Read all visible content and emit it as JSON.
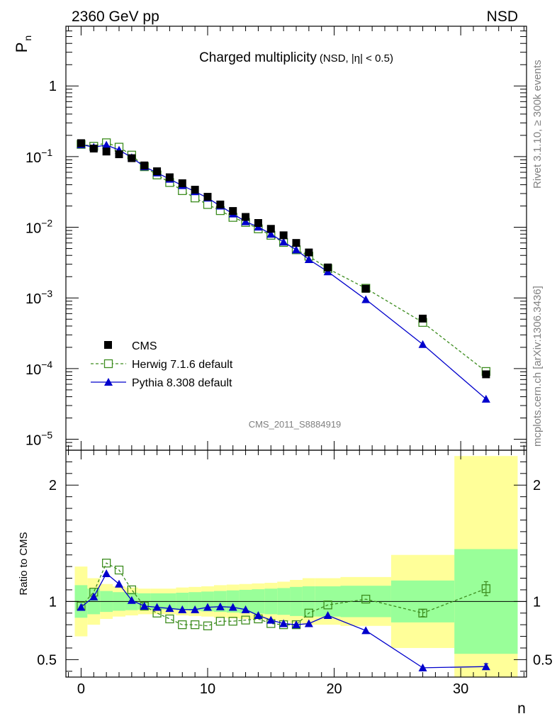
{
  "header": {
    "left": "2360 GeV pp",
    "right": "NSD"
  },
  "title": {
    "main": "Charged multiplicity",
    "sub": "(NSD, |η| < 0.5)"
  },
  "ylabel_top": {
    "base": "P",
    "sub": "n"
  },
  "ylabel_bottom": "Ratio to CMS",
  "xlabel": "n",
  "side_text_top": "Rivet 3.1.10, ≥ 300k events",
  "side_text_bottom": "mcplots.cern.ch [arXiv:1306.3436]",
  "watermark": "CMS_2011_S8884919",
  "colors": {
    "data": "#000000",
    "herwig": "#3c8c1e",
    "pythia": "#0000cc",
    "band_inner": "#99ff99",
    "band_outer": "#ffff99"
  },
  "chart_data": [
    {
      "type": "scatter",
      "panel": "main",
      "yscale": "log",
      "ylim": [
        7e-06,
        7
      ],
      "xlim": [
        -1.2,
        35.2
      ],
      "y_ticks": [
        {
          "value": 1,
          "label": "1"
        },
        {
          "value": 0.1,
          "base": "10",
          "exp": "−1"
        },
        {
          "value": 0.01,
          "base": "10",
          "exp": "−2"
        },
        {
          "value": 0.001,
          "base": "10",
          "exp": "−3"
        },
        {
          "value": 0.0001,
          "base": "10",
          "exp": "−4"
        },
        {
          "value": 1e-05,
          "base": "10",
          "exp": "−5"
        }
      ],
      "legend": {
        "position": "bottom-left",
        "entries": [
          {
            "key": "cms",
            "label": "CMS"
          },
          {
            "key": "herwig",
            "label": "Herwig 7.1.6 default"
          },
          {
            "key": "pythia",
            "label": "Pythia 8.308 default"
          }
        ]
      },
      "series": [
        {
          "key": "cms",
          "name": "CMS",
          "marker": "filled-square",
          "x": [
            0,
            1,
            2,
            3,
            4,
            5,
            6,
            7,
            8,
            9,
            10,
            11,
            12,
            13,
            14,
            15,
            16,
            17,
            18,
            19.5,
            22.5,
            27,
            32
          ],
          "y": [
            0.155,
            0.13,
            0.118,
            0.108,
            0.095,
            0.075,
            0.062,
            0.051,
            0.042,
            0.034,
            0.027,
            0.021,
            0.017,
            0.014,
            0.0115,
            0.0095,
            0.0077,
            0.006,
            0.0044,
            0.0027,
            0.00135,
            0.00051,
            8.3e-05
          ]
        },
        {
          "key": "herwig",
          "name": "Herwig 7.1.6 default",
          "marker": "open-square",
          "line": "dashed",
          "x": [
            0,
            1,
            2,
            3,
            4,
            5,
            6,
            7,
            8,
            9,
            10,
            11,
            12,
            13,
            14,
            15,
            16,
            17,
            18,
            19.5,
            22.5,
            27,
            32
          ],
          "y": [
            0.149,
            0.14,
            0.157,
            0.136,
            0.105,
            0.072,
            0.055,
            0.043,
            0.033,
            0.026,
            0.021,
            0.0172,
            0.0138,
            0.0117,
            0.0095,
            0.0077,
            0.0061,
            0.0048,
            0.0039,
            0.0026,
            0.00137,
            0.00045,
            9.1e-05
          ]
        },
        {
          "key": "pythia",
          "name": "Pythia 8.308 default",
          "marker": "filled-triangle",
          "line": "solid",
          "x": [
            0,
            1,
            2,
            3,
            4,
            5,
            6,
            7,
            8,
            9,
            10,
            11,
            12,
            13,
            14,
            15,
            16,
            17,
            18,
            19.5,
            22.5,
            27,
            32
          ],
          "y": [
            0.148,
            0.136,
            0.146,
            0.124,
            0.097,
            0.072,
            0.059,
            0.048,
            0.039,
            0.032,
            0.026,
            0.02,
            0.0155,
            0.012,
            0.0101,
            0.008,
            0.0062,
            0.0048,
            0.0035,
            0.00235,
            0.00095,
            0.00022,
            3.7e-05
          ]
        }
      ]
    },
    {
      "type": "line",
      "panel": "ratio",
      "ylabel": "Ratio to CMS",
      "xlabel": "n",
      "ylim": [
        0.35,
        2.3
      ],
      "xlim": [
        -1.2,
        35.2
      ],
      "x_ticks": [
        0,
        10,
        20,
        30
      ],
      "y_ticks": [
        {
          "value": 0.5,
          "label": "0.5"
        },
        {
          "value": 1,
          "label": "1"
        },
        {
          "value": 2,
          "label": "2"
        }
      ],
      "bands": {
        "edges": [
          -0.5,
          0.5,
          1.5,
          2.5,
          3.5,
          4.5,
          5.5,
          6.5,
          7.5,
          8.5,
          9.5,
          10.5,
          11.5,
          12.5,
          13.5,
          14.5,
          15.5,
          16.5,
          17.5,
          18.5,
          20.5,
          24.5,
          29.5,
          34.5
        ],
        "inner_low": [
          0.86,
          0.89,
          0.91,
          0.92,
          0.925,
          0.93,
          0.93,
          0.93,
          0.925,
          0.92,
          0.915,
          0.91,
          0.905,
          0.9,
          0.895,
          0.89,
          0.885,
          0.875,
          0.87,
          0.87,
          0.865,
          0.82,
          0.55
        ],
        "inner_high": [
          1.14,
          1.11,
          1.09,
          1.08,
          1.075,
          1.07,
          1.07,
          1.07,
          1.075,
          1.08,
          1.085,
          1.09,
          1.095,
          1.1,
          1.105,
          1.11,
          1.115,
          1.125,
          1.13,
          1.13,
          1.135,
          1.18,
          1.45
        ],
        "outer_low": [
          0.7,
          0.8,
          0.85,
          0.87,
          0.88,
          0.89,
          0.89,
          0.89,
          0.88,
          0.875,
          0.87,
          0.86,
          0.855,
          0.85,
          0.845,
          0.84,
          0.83,
          0.815,
          0.8,
          0.8,
          0.79,
          0.6,
          0.35
        ],
        "outer_high": [
          1.3,
          1.2,
          1.15,
          1.13,
          1.12,
          1.11,
          1.11,
          1.11,
          1.12,
          1.125,
          1.13,
          1.14,
          1.145,
          1.15,
          1.155,
          1.16,
          1.17,
          1.185,
          1.2,
          1.2,
          1.21,
          1.4,
          2.25
        ]
      },
      "series": [
        {
          "key": "herwig",
          "name": "Herwig 7.1.6 default",
          "line": "dashed",
          "x": [
            0,
            1,
            2,
            3,
            4,
            5,
            6,
            7,
            8,
            9,
            10,
            11,
            12,
            13,
            14,
            15,
            16,
            17,
            18,
            19.5,
            22.5,
            27,
            32
          ],
          "y": [
            0.96,
            1.08,
            1.33,
            1.27,
            1.1,
            0.96,
            0.9,
            0.85,
            0.8,
            0.8,
            0.79,
            0.83,
            0.83,
            0.84,
            0.85,
            0.81,
            0.8,
            0.8,
            0.9,
            0.97,
            1.02,
            0.9,
            1.11
          ],
          "yerr": [
            0,
            0,
            0,
            0,
            0,
            0,
            0,
            0,
            0,
            0,
            0,
            0,
            0,
            0,
            0,
            0,
            0,
            0,
            0,
            0,
            0,
            0.03,
            0.06
          ]
        },
        {
          "key": "pythia",
          "name": "Pythia 8.308 default",
          "line": "solid",
          "x": [
            0,
            1,
            2,
            3,
            4,
            5,
            6,
            7,
            8,
            9,
            10,
            11,
            12,
            13,
            14,
            15,
            16,
            17,
            18,
            19.5,
            22.5,
            27,
            32
          ],
          "y": [
            0.95,
            1.04,
            1.24,
            1.15,
            1.01,
            0.96,
            0.95,
            0.94,
            0.93,
            0.93,
            0.95,
            0.955,
            0.95,
            0.93,
            0.88,
            0.84,
            0.81,
            0.8,
            0.81,
            0.88,
            0.75,
            0.43,
            0.44
          ],
          "yerr": [
            0,
            0,
            0,
            0,
            0,
            0,
            0,
            0,
            0,
            0,
            0,
            0,
            0,
            0,
            0,
            0,
            0,
            0,
            0,
            0,
            0,
            0,
            0.025
          ]
        }
      ]
    }
  ]
}
